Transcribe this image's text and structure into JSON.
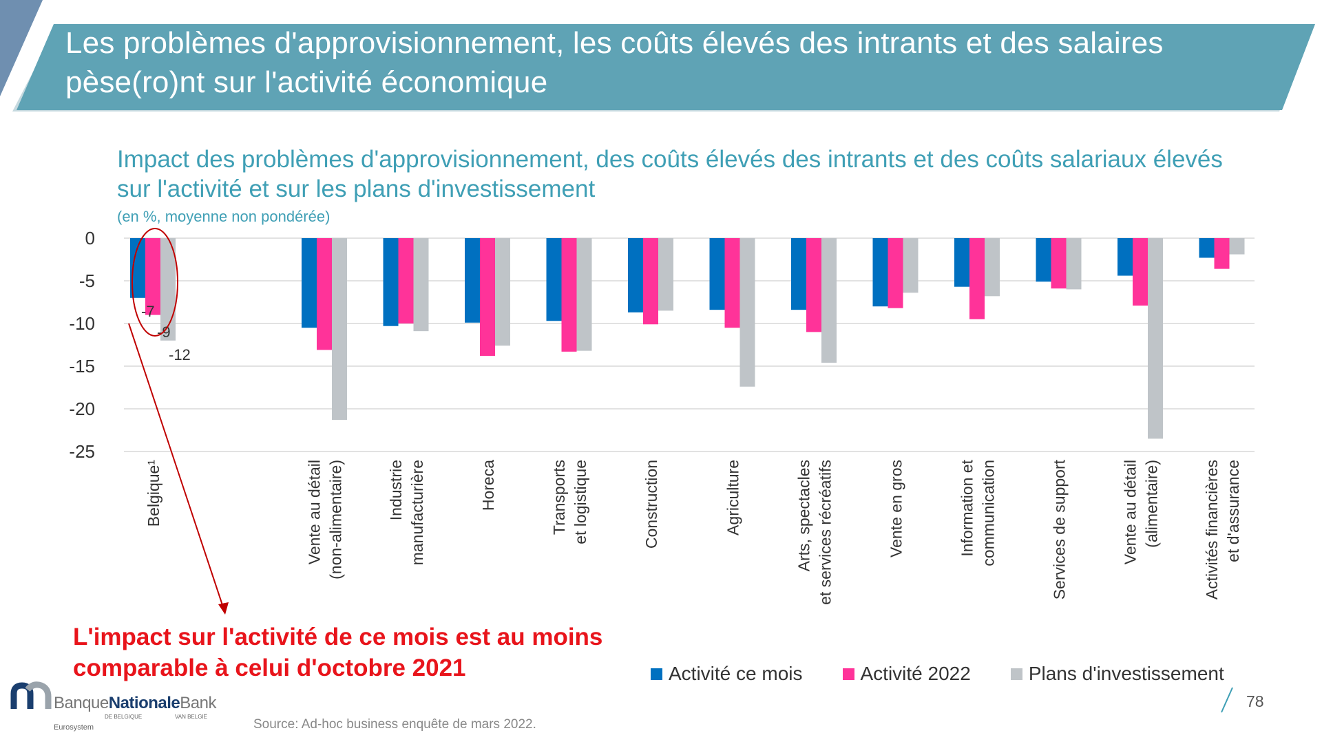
{
  "title": {
    "line1": "Les problèmes d'approvisionnement, les coûts élevés des intrants et des salaires",
    "line2": "pèse(ro)nt sur l'activité économique"
  },
  "chart_heading": {
    "line1": "Impact des problèmes d'approvisionnement, des coûts élevés des intrants et des coûts salariaux élevés",
    "line2": "sur l'activité et sur les plans d'investissement",
    "unit": "(en %, moyenne non pondérée)"
  },
  "chart_data": {
    "type": "bar",
    "ylim": [
      -25,
      0
    ],
    "yticks": [
      0,
      -5,
      -10,
      -15,
      -20,
      -25
    ],
    "grid": true,
    "legend_position": "bottom-right",
    "categories": [
      [
        "Belgique¹"
      ],
      [
        "Vente au détail",
        "(non-alimentaire)"
      ],
      [
        "Industrie",
        "manufacturière"
      ],
      [
        "Horeca"
      ],
      [
        "Transports",
        "et logistique"
      ],
      [
        "Construction"
      ],
      [
        "Agriculture"
      ],
      [
        "Arts, spectacles",
        "et services récréatifs"
      ],
      [
        "Vente en gros"
      ],
      [
        "Information et",
        "communication"
      ],
      [
        "Services de support"
      ],
      [
        "Vente au détail",
        "(alimentaire)"
      ],
      [
        "Activités financières",
        "et d'assurance"
      ]
    ],
    "series": [
      {
        "name": "Activité ce mois",
        "color": "#0070c0",
        "values": [
          -7,
          -10.5,
          -10.3,
          -9.9,
          -9.7,
          -8.7,
          -8.4,
          -8.4,
          -8.0,
          -5.7,
          -5.1,
          -4.4,
          -2.3
        ]
      },
      {
        "name": "Activité 2022",
        "color": "#ff3399",
        "values": [
          -9,
          -13.1,
          -10.0,
          -13.8,
          -13.3,
          -10.1,
          -10.5,
          -11.0,
          -8.2,
          -9.5,
          -5.9,
          -7.9,
          -3.6
        ]
      },
      {
        "name": "Plans d'investissement",
        "color": "#bfc4c8",
        "values": [
          -12,
          -21.3,
          -10.9,
          -12.6,
          -13.2,
          -8.5,
          -17.4,
          -14.6,
          -6.4,
          -6.8,
          -6.0,
          -23.5,
          -1.9
        ]
      }
    ],
    "data_labels": [
      "-7",
      "-9",
      "-12"
    ]
  },
  "callout": {
    "line1": "L'impact sur l'activité de ce mois est au moins",
    "line2": "comparable à celui d'octobre 2021"
  },
  "page_number": "78",
  "source": "Source: Ad-hoc business enquête de mars 2022.",
  "logo": {
    "part1": "Banque",
    "part2": "Nationale",
    "part3": "Bank",
    "sub1": "DE BELGIQUE",
    "sub2": "VAN BELGIË",
    "sub3": "Eurosystem"
  },
  "colors": {
    "banner": "#5fa3b5",
    "accent_title": "#3f9fb5",
    "callout": "#e8141b"
  }
}
